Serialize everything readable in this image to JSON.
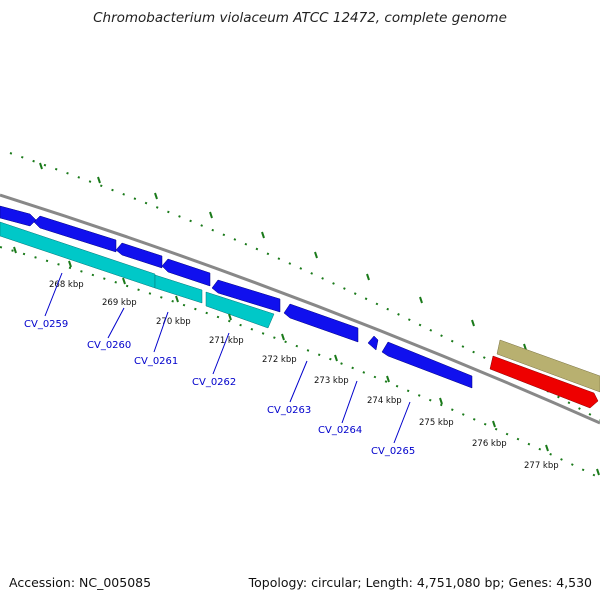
{
  "title": "Chromobacterium violaceum ATCC 12472, complete genome",
  "footer": {
    "accession": "Accession: NC_005085",
    "topology": "Topology: circular; Length: 4,751,080 bp; Genes: 4,530"
  },
  "ticks": [
    "268 kbp",
    "269 kbp",
    "270 kbp",
    "271 kbp",
    "272 kbp",
    "273 kbp",
    "274 kbp",
    "275 kbp",
    "276 kbp",
    "277 kbp"
  ],
  "genes": [
    "CV_0259",
    "CV_0260",
    "CV_0261",
    "CV_0262",
    "CV_0263",
    "CV_0264",
    "CV_0265"
  ],
  "colors": {
    "forward_cds": "#1010ee",
    "reverse_cds": "#00c8c8",
    "rna": "#ee0000",
    "feature": "#b8b070",
    "backbone": "#888888",
    "ticks": "#1a7a1a",
    "gene_label": "#0000cc"
  }
}
